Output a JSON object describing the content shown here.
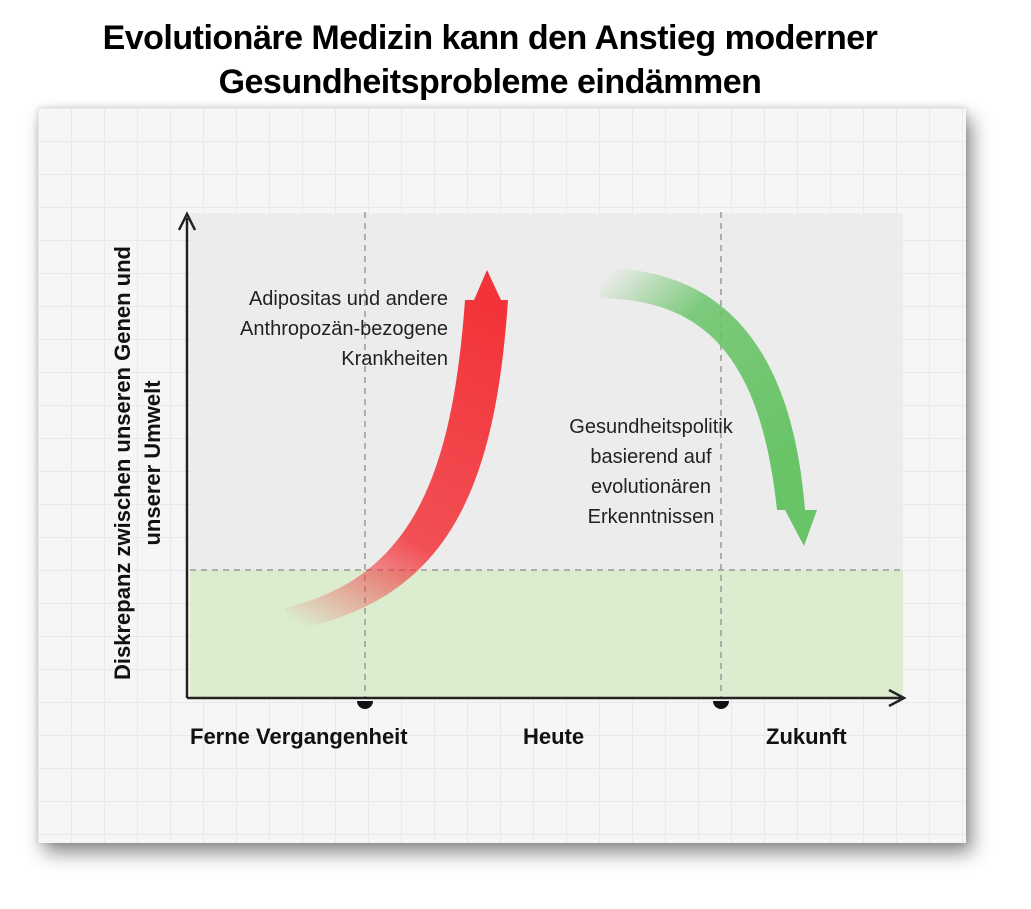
{
  "title": {
    "line1": "Evolutionäre Medizin kann den Anstieg moderner",
    "line2": "Gesundheitsprobleme eindämmen"
  },
  "y_axis_label": "Diskrepanz zwischen unseren Genen und\nunserer Umwelt",
  "x_axis_labels": [
    "Ferne Vergangenheit",
    "Heute",
    "Zukunft"
  ],
  "annotations": {
    "red_curve": "Adipositas und andere\nAnthropozän-bezogene\nKrankheiten",
    "green_curve": "Gesundheitspolitik\nbasierend auf\nevolutionären\nErkenntnissen"
  },
  "colors": {
    "red_arrow": "#f2343a",
    "green_arrow": "#69c468",
    "baseline_band": "#d9ebcc",
    "upper_band": "#ececec"
  }
}
